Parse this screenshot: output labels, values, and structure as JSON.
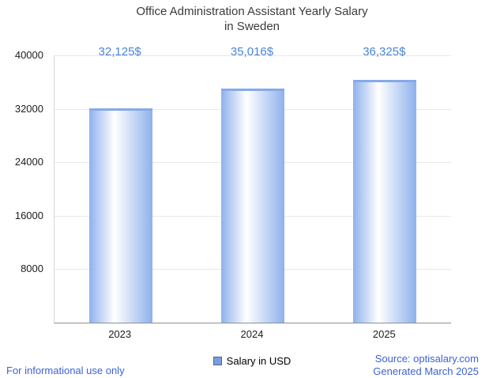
{
  "chart_data": {
    "type": "bar",
    "title": "Office Administration Assistant Yearly Salary in Sweden",
    "title_lines": [
      "Office Administration Assistant Yearly Salary",
      "in Sweden"
    ],
    "categories": [
      "2023",
      "2024",
      "2025"
    ],
    "values": [
      32125,
      35016,
      36325
    ],
    "value_labels": [
      "32,125$",
      "35,016$",
      "36,325$"
    ],
    "xlabel": "",
    "ylabel": "",
    "ylim": [
      0,
      40000
    ],
    "yticks": [
      8000,
      16000,
      24000,
      32000,
      40000
    ],
    "grid": true,
    "legend_position": "bottom",
    "legend": [
      {
        "label": "Salary in USD",
        "color": "#7b9ce0"
      }
    ],
    "bar_edge_color": "#8fb1ec",
    "bar_mid_color": "#ffffff",
    "bar_top_color": "#86a9e9"
  },
  "colors": {
    "accent_text": "#4a84da",
    "footer_text": "#3c63d6",
    "title_text": "#3b3b3b",
    "gridline": "#e8e8e8"
  },
  "footer": {
    "left": "For informational use only",
    "source": "Source: optisalary.com",
    "generated": "Generated March 2025"
  }
}
